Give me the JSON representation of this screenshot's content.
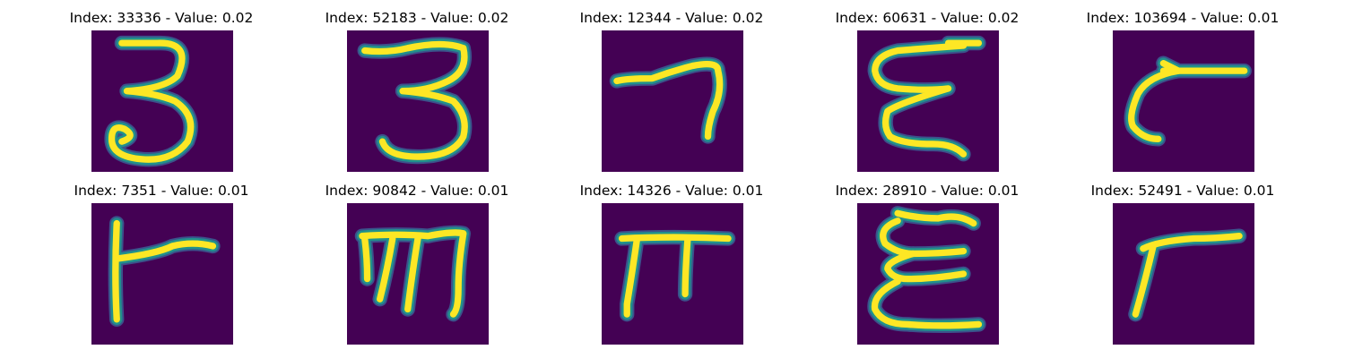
{
  "colors": {
    "background": "#440154",
    "mid": "#21918c",
    "bright": "#fde725",
    "glow": "#3b528b"
  },
  "panels": [
    {
      "title": "Index: 33336 - Value: 0.02",
      "glyph": "three"
    },
    {
      "title": "Index: 52183 - Value: 0.02",
      "glyph": "three-flat"
    },
    {
      "title": "Index: 12344 - Value: 0.02",
      "glyph": "seven-hook"
    },
    {
      "title": "Index: 60631 - Value: 0.02",
      "glyph": "epsilon-z"
    },
    {
      "title": "Index: 103694 - Value: 0.01",
      "glyph": "curl-dash"
    },
    {
      "title": "Index: 7351 - Value: 0.01",
      "glyph": "r-shape"
    },
    {
      "title": "Index: 90842 - Value: 0.01",
      "glyph": "m-shape"
    },
    {
      "title": "Index: 14326 - Value: 0.01",
      "glyph": "pi-shape"
    },
    {
      "title": "Index: 28910 - Value: 0.01",
      "glyph": "epsilon"
    },
    {
      "title": "Index: 52491 - Value: 0.01",
      "glyph": "gamma-curve"
    }
  ]
}
